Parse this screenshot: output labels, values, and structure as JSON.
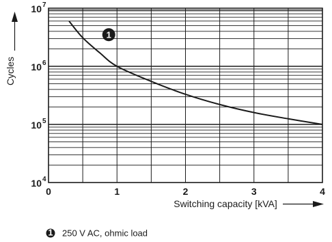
{
  "chart_data": {
    "type": "line",
    "xlabel": "Switching capacity [kVA]",
    "ylabel": "Cycles",
    "xlim": [
      0,
      4
    ],
    "ylim": [
      10000,
      10000000
    ],
    "yscale": "log",
    "grid": true,
    "x_ticks": [
      "0",
      "1",
      "2",
      "3",
      "4"
    ],
    "y_ticks": [
      {
        "base": "10",
        "exp": "4",
        "value": 10000
      },
      {
        "base": "10",
        "exp": "5",
        "value": 100000
      },
      {
        "base": "10",
        "exp": "6",
        "value": 1000000
      },
      {
        "base": "10",
        "exp": "7",
        "value": 10000000
      }
    ],
    "series": [
      {
        "marker": "1",
        "x": [
          0.3,
          0.5,
          0.75,
          1.0,
          1.5,
          2.0,
          2.5,
          3.0,
          3.5,
          4.0
        ],
        "y": [
          6000000,
          3100000,
          1700000,
          1000000,
          550000,
          330000,
          220000,
          160000,
          125000,
          100000
        ]
      }
    ],
    "marker_label": {
      "text": "1",
      "x": 0.88,
      "y": 3500000
    },
    "legend": [
      {
        "marker": "1",
        "label": "250 V AC, ohmic load"
      }
    ]
  }
}
